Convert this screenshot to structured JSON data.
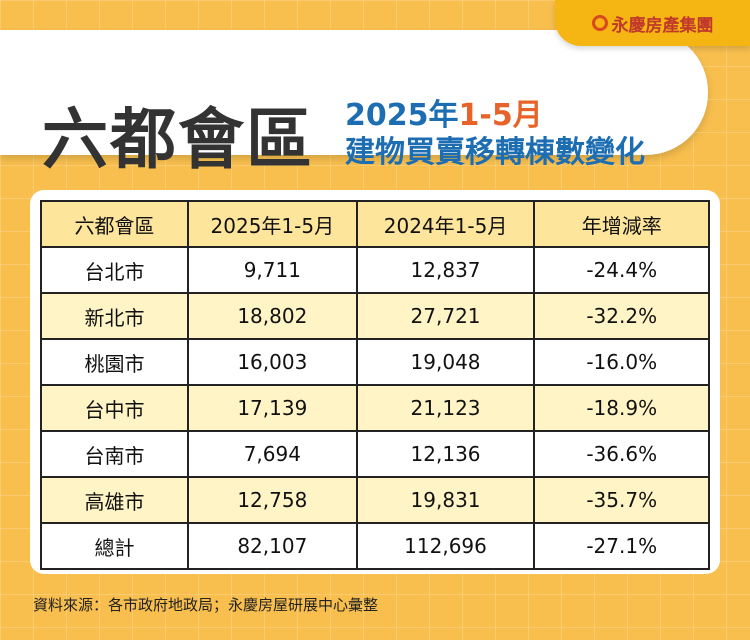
{
  "brand": {
    "logo_text": "永慶房產集團",
    "logo_icon": "circle-arrow-logo"
  },
  "header": {
    "title": "六都會區",
    "subtitle_year": "2025年",
    "subtitle_period": "1-5月",
    "subtitle_line2": "建物買賣移轉棟數變化"
  },
  "colors": {
    "background": "#f8bf4e",
    "header_row": "#fde59b",
    "alt_row": "#fff4c6",
    "title_blue": "#1c6db2",
    "accent_orange": "#e8632a"
  },
  "chart_data": {
    "type": "table",
    "columns": [
      "六都會區",
      "2025年1-5月",
      "2024年1-5月",
      "年增減率"
    ],
    "rows": [
      [
        "台北市",
        "9,711",
        "12,837",
        "-24.4%"
      ],
      [
        "新北市",
        "18,802",
        "27,721",
        "-32.2%"
      ],
      [
        "桃園市",
        "16,003",
        "19,048",
        "-16.0%"
      ],
      [
        "台中市",
        "17,139",
        "21,123",
        "-18.9%"
      ],
      [
        "台南市",
        "7,694",
        "12,136",
        "-36.6%"
      ],
      [
        "高雄市",
        "12,758",
        "19,831",
        "-35.7%"
      ],
      [
        "總計",
        "82,107",
        "112,696",
        "-27.1%"
      ]
    ]
  },
  "footer": {
    "source": "資料來源：各市政府地政局；永慶房屋研展中心彙整"
  }
}
